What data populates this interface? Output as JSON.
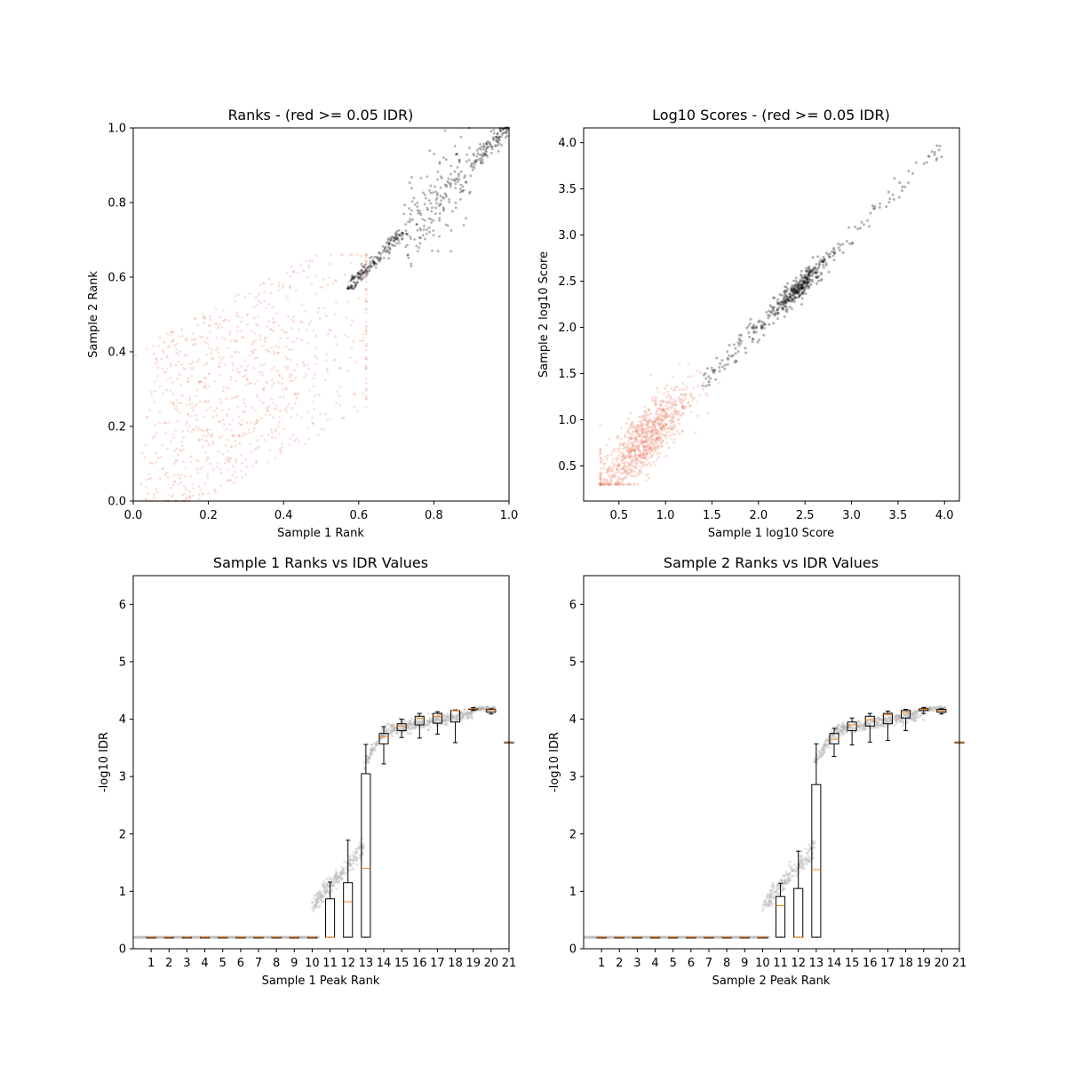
{
  "colors": {
    "pass": "#000000",
    "fail": "#ec8566",
    "box_edge": "#000000",
    "median": "#ff7f0e",
    "density": "#b0b0b0"
  },
  "chart_data": [
    {
      "type": "scatter",
      "title": "Ranks - (red >= 0.05 IDR)",
      "xlabel": "Sample 1 Rank",
      "ylabel": "Sample 2 Rank",
      "xlim": [
        0.0,
        1.0
      ],
      "ylim": [
        0.0,
        1.0
      ],
      "xticks": [
        "0.0",
        "0.2",
        "0.4",
        "0.6",
        "0.8",
        "1.0"
      ],
      "yticks": [
        "0.0",
        "0.2",
        "0.4",
        "0.6",
        "0.8",
        "1.0"
      ],
      "grid": false,
      "series": [
        {
          "group": "pass",
          "count": 480,
          "shape": "diagonal band",
          "x_range": [
            0.57,
            1.0
          ],
          "notes": "tight band near y=x from 0.57 to 0.72, wider spread 0.72 to 0.9, converging at 1.0"
        },
        {
          "group": "fail",
          "count": 900,
          "shape": "diffuse cloud",
          "x_range": [
            0.0,
            0.62
          ],
          "y_range": [
            0.0,
            0.66
          ],
          "notes": "low-rank peaks, weakly correlated"
        }
      ]
    },
    {
      "type": "scatter",
      "title": "Log10 Scores - (red >= 0.05 IDR)",
      "xlabel": "Sample 1 log10 Score",
      "ylabel": "Sample 2 log10 Score",
      "xlim": [
        0.12,
        4.16
      ],
      "ylim": [
        0.12,
        4.16
      ],
      "xticks": [
        "0.5",
        "1.0",
        "1.5",
        "2.0",
        "2.5",
        "3.0",
        "3.5",
        "4.0"
      ],
      "yticks": [
        "0.5",
        "1.0",
        "1.5",
        "2.0",
        "2.5",
        "3.0",
        "3.5",
        "4.0"
      ],
      "grid": false,
      "series": [
        {
          "group": "pass",
          "count": 480,
          "shape": "diagonal band",
          "x_range": [
            1.3,
            4.0
          ],
          "notes": "dense cluster around (2.5, 2.5)"
        },
        {
          "group": "fail",
          "count": 900,
          "shape": "cloud",
          "x_range": [
            0.3,
            1.6
          ],
          "y_range": [
            0.3,
            1.6
          ],
          "notes": "dense near (0.7, 0.7)"
        }
      ]
    },
    {
      "type": "box",
      "title": "Sample 1 Ranks vs IDR Values",
      "xlabel": "Sample 1 Peak Rank",
      "ylabel": "-log10 IDR",
      "xlim": [
        0,
        21
      ],
      "ylim": [
        0,
        6.5
      ],
      "xticks": [
        "1",
        "2",
        "3",
        "4",
        "5",
        "6",
        "7",
        "8",
        "9",
        "10",
        "11",
        "12",
        "13",
        "14",
        "15",
        "16",
        "17",
        "18",
        "19",
        "20",
        "21"
      ],
      "yticks": [
        "0",
        "1",
        "2",
        "3",
        "4",
        "5",
        "6"
      ],
      "grid": false,
      "boxes": [
        {
          "bin": 1,
          "whislo": 0.2,
          "q1": 0.2,
          "med": 0.2,
          "q3": 0.2,
          "whishi": 0.2
        },
        {
          "bin": 2,
          "whislo": 0.2,
          "q1": 0.2,
          "med": 0.2,
          "q3": 0.2,
          "whishi": 0.2
        },
        {
          "bin": 3,
          "whislo": 0.2,
          "q1": 0.2,
          "med": 0.2,
          "q3": 0.2,
          "whishi": 0.2
        },
        {
          "bin": 4,
          "whislo": 0.2,
          "q1": 0.2,
          "med": 0.2,
          "q3": 0.2,
          "whishi": 0.2
        },
        {
          "bin": 5,
          "whislo": 0.2,
          "q1": 0.2,
          "med": 0.2,
          "q3": 0.2,
          "whishi": 0.2
        },
        {
          "bin": 6,
          "whislo": 0.2,
          "q1": 0.2,
          "med": 0.2,
          "q3": 0.2,
          "whishi": 0.2
        },
        {
          "bin": 7,
          "whislo": 0.2,
          "q1": 0.2,
          "med": 0.2,
          "q3": 0.2,
          "whishi": 0.2
        },
        {
          "bin": 8,
          "whislo": 0.2,
          "q1": 0.2,
          "med": 0.2,
          "q3": 0.2,
          "whishi": 0.2
        },
        {
          "bin": 9,
          "whislo": 0.2,
          "q1": 0.2,
          "med": 0.2,
          "q3": 0.2,
          "whishi": 0.2
        },
        {
          "bin": 10,
          "whislo": 0.2,
          "q1": 0.2,
          "med": 0.2,
          "q3": 0.2,
          "whishi": 0.2
        },
        {
          "bin": 11,
          "whislo": 0.2,
          "q1": 0.2,
          "med": 0.2,
          "q3": 0.87,
          "whishi": 1.16
        },
        {
          "bin": 12,
          "whislo": 0.2,
          "q1": 0.2,
          "med": 0.82,
          "q3": 1.15,
          "whishi": 1.89
        },
        {
          "bin": 13,
          "whislo": 0.2,
          "q1": 0.2,
          "med": 1.4,
          "q3": 3.05,
          "whishi": 3.56
        },
        {
          "bin": 14,
          "whislo": 3.22,
          "q1": 3.57,
          "med": 3.7,
          "q3": 3.75,
          "whishi": 3.87
        },
        {
          "bin": 15,
          "whislo": 3.68,
          "q1": 3.8,
          "med": 3.88,
          "q3": 3.92,
          "whishi": 4.0
        },
        {
          "bin": 16,
          "whislo": 3.67,
          "q1": 3.9,
          "med": 4.02,
          "q3": 4.05,
          "whishi": 4.1
        },
        {
          "bin": 17,
          "whislo": 3.74,
          "q1": 3.93,
          "med": 4.05,
          "q3": 4.1,
          "whishi": 4.13
        },
        {
          "bin": 18,
          "whislo": 3.59,
          "q1": 3.95,
          "med": 4.15,
          "q3": 4.15,
          "whishi": 4.16
        },
        {
          "bin": 19,
          "whislo": 4.15,
          "q1": 4.17,
          "med": 4.18,
          "q3": 4.18,
          "whishi": 4.2
        },
        {
          "bin": 20,
          "whislo": 4.09,
          "q1": 4.12,
          "med": 4.16,
          "q3": 4.17,
          "whishi": 4.18
        },
        {
          "bin": 21,
          "whislo": 3.6,
          "q1": 3.6,
          "med": 3.6,
          "q3": 3.6,
          "whishi": 3.6
        }
      ]
    },
    {
      "type": "box",
      "title": "Sample 2 Ranks vs IDR Values",
      "xlabel": "Sample 2 Peak Rank",
      "ylabel": "-log10 IDR",
      "xlim": [
        0,
        21
      ],
      "ylim": [
        0,
        6.5
      ],
      "xticks": [
        "1",
        "2",
        "3",
        "4",
        "5",
        "6",
        "7",
        "8",
        "9",
        "10",
        "11",
        "12",
        "13",
        "14",
        "15",
        "16",
        "17",
        "18",
        "19",
        "20",
        "21"
      ],
      "yticks": [
        "0",
        "1",
        "2",
        "3",
        "4",
        "5",
        "6"
      ],
      "grid": false,
      "boxes": [
        {
          "bin": 1,
          "whislo": 0.2,
          "q1": 0.2,
          "med": 0.2,
          "q3": 0.2,
          "whishi": 0.2
        },
        {
          "bin": 2,
          "whislo": 0.2,
          "q1": 0.2,
          "med": 0.2,
          "q3": 0.2,
          "whishi": 0.2
        },
        {
          "bin": 3,
          "whislo": 0.2,
          "q1": 0.2,
          "med": 0.2,
          "q3": 0.2,
          "whishi": 0.2
        },
        {
          "bin": 4,
          "whislo": 0.2,
          "q1": 0.2,
          "med": 0.2,
          "q3": 0.2,
          "whishi": 0.2
        },
        {
          "bin": 5,
          "whislo": 0.2,
          "q1": 0.2,
          "med": 0.2,
          "q3": 0.2,
          "whishi": 0.2
        },
        {
          "bin": 6,
          "whislo": 0.2,
          "q1": 0.2,
          "med": 0.2,
          "q3": 0.2,
          "whishi": 0.2
        },
        {
          "bin": 7,
          "whislo": 0.2,
          "q1": 0.2,
          "med": 0.2,
          "q3": 0.2,
          "whishi": 0.2
        },
        {
          "bin": 8,
          "whislo": 0.2,
          "q1": 0.2,
          "med": 0.2,
          "q3": 0.2,
          "whishi": 0.2
        },
        {
          "bin": 9,
          "whislo": 0.2,
          "q1": 0.2,
          "med": 0.2,
          "q3": 0.2,
          "whishi": 0.2
        },
        {
          "bin": 10,
          "whislo": 0.2,
          "q1": 0.2,
          "med": 0.2,
          "q3": 0.2,
          "whishi": 0.2
        },
        {
          "bin": 11,
          "whislo": 0.2,
          "q1": 0.2,
          "med": 0.75,
          "q3": 0.91,
          "whishi": 1.14
        },
        {
          "bin": 12,
          "whislo": 0.2,
          "q1": 0.2,
          "med": 0.2,
          "q3": 1.05,
          "whishi": 1.7
        },
        {
          "bin": 13,
          "whislo": 0.2,
          "q1": 0.2,
          "med": 1.38,
          "q3": 2.86,
          "whishi": 3.57
        },
        {
          "bin": 14,
          "whislo": 3.35,
          "q1": 3.57,
          "med": 3.65,
          "q3": 3.75,
          "whishi": 3.84
        },
        {
          "bin": 15,
          "whislo": 3.55,
          "q1": 3.8,
          "med": 3.9,
          "q3": 3.95,
          "whishi": 4.02
        },
        {
          "bin": 16,
          "whislo": 3.6,
          "q1": 3.88,
          "med": 3.99,
          "q3": 4.05,
          "whishi": 4.1
        },
        {
          "bin": 17,
          "whislo": 3.63,
          "q1": 3.92,
          "med": 4.08,
          "q3": 4.1,
          "whishi": 4.14
        },
        {
          "bin": 18,
          "whislo": 3.8,
          "q1": 4.02,
          "med": 4.12,
          "q3": 4.15,
          "whishi": 4.17
        },
        {
          "bin": 19,
          "whislo": 4.1,
          "q1": 4.15,
          "med": 4.17,
          "q3": 4.18,
          "whishi": 4.2
        },
        {
          "bin": 20,
          "whislo": 4.09,
          "q1": 4.12,
          "med": 4.15,
          "q3": 4.17,
          "whishi": 4.18
        },
        {
          "bin": 21,
          "whislo": 3.6,
          "q1": 3.6,
          "med": 3.6,
          "q3": 3.6,
          "whishi": 3.6
        }
      ]
    }
  ]
}
